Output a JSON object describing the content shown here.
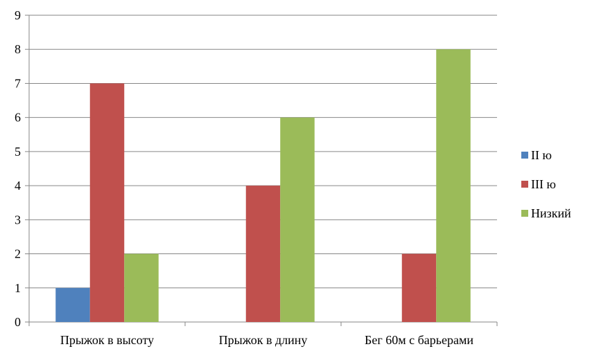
{
  "chart_data": {
    "type": "bar",
    "categories": [
      "Прыжок в высоту",
      "Прыжок в длину",
      "Бег 60м с барьерами"
    ],
    "series": [
      {
        "name": "II ю",
        "color": "#4f81bd",
        "values": [
          1,
          0,
          0
        ]
      },
      {
        "name": "III ю",
        "color": "#c0504d",
        "values": [
          7,
          4,
          2
        ]
      },
      {
        "name": "Низкий",
        "color": "#9bbb59",
        "values": [
          2,
          6,
          8
        ]
      }
    ],
    "ylim": [
      0,
      9
    ],
    "yticks": [
      "0",
      "1",
      "2",
      "3",
      "4",
      "5",
      "6",
      "7",
      "8",
      "9"
    ],
    "grid": true,
    "legend_position": "right",
    "title": "",
    "xlabel": "",
    "ylabel": ""
  }
}
